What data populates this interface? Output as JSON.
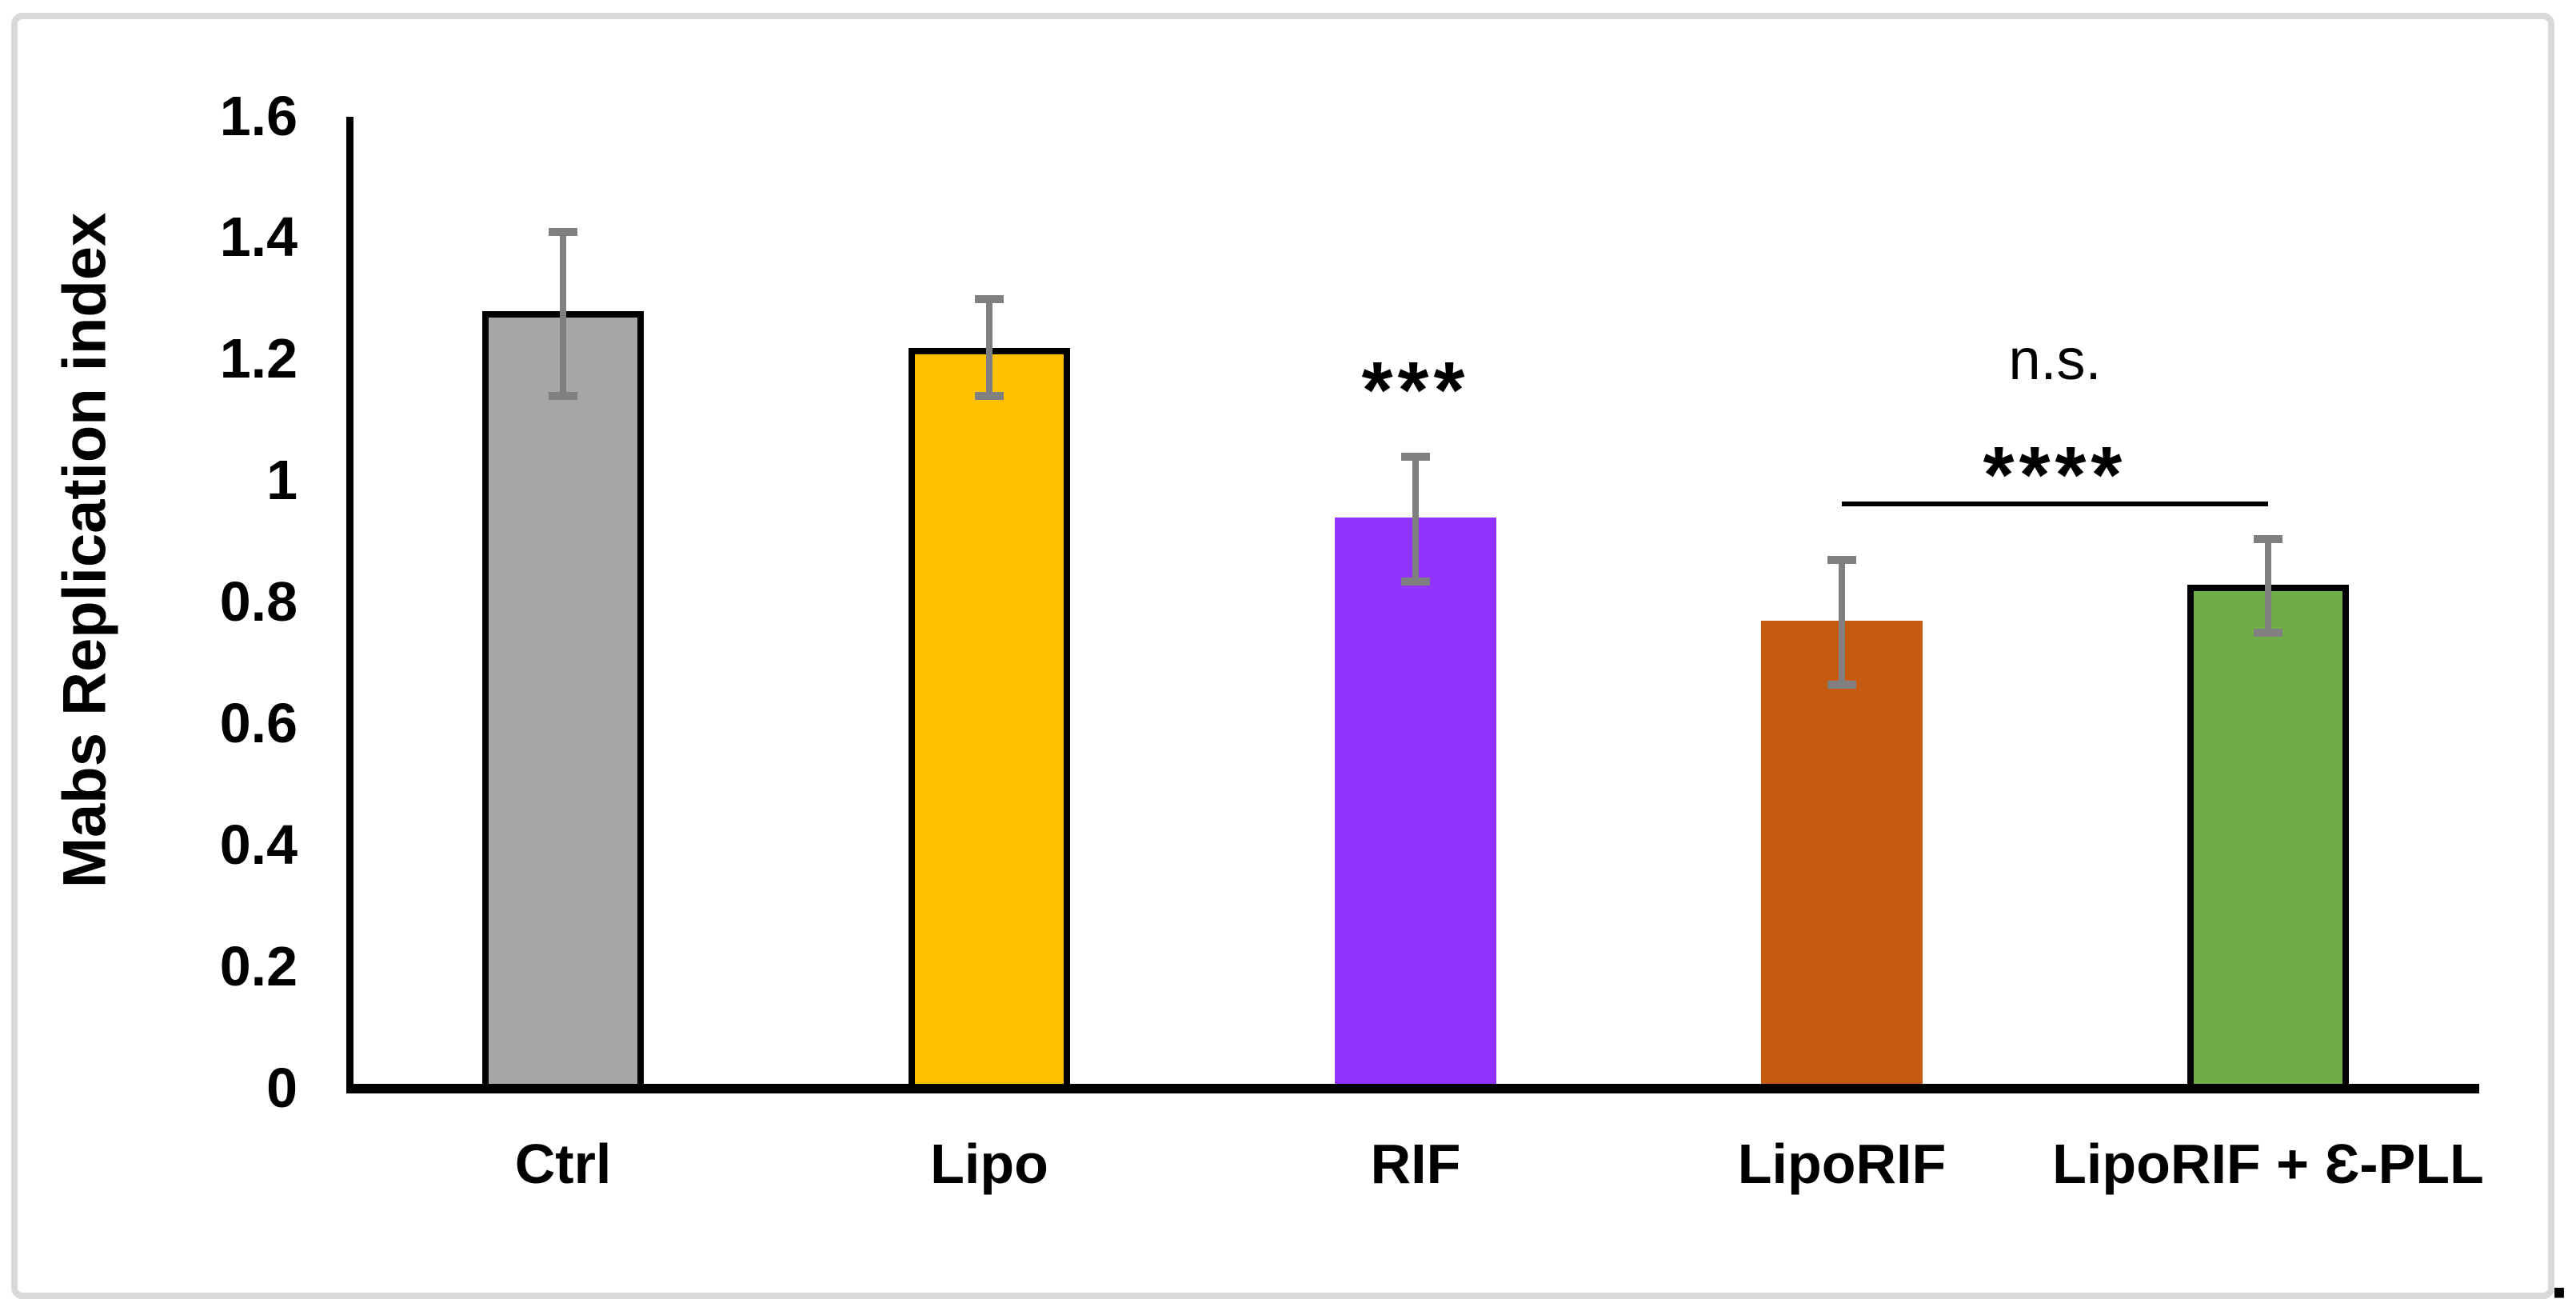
{
  "figure": {
    "caption_mark": "."
  },
  "chart_data": {
    "type": "bar",
    "title": "",
    "xlabel": "",
    "ylabel": "Mabs Replication index",
    "ylim": [
      0,
      1.6
    ],
    "yticks": [
      0,
      0.2,
      0.4,
      0.6,
      0.8,
      1,
      1.2,
      1.4,
      1.6
    ],
    "ytick_labels": [
      "0",
      "0.2",
      "0.4",
      "0.6",
      "0.8",
      "1",
      "1.2",
      "1.4",
      "1.6"
    ],
    "grid": false,
    "legend": false,
    "categories": [
      "Ctrl",
      "Lipo",
      "RIF",
      "LipoRIF",
      "LipoRIF + Ɛ-PLL"
    ],
    "series": [
      {
        "name": "Mabs Replication index",
        "values": [
          1.28,
          1.22,
          0.94,
          0.77,
          0.83
        ],
        "error_high": [
          0.13,
          0.08,
          0.1,
          0.1,
          0.075
        ],
        "error_low": [
          0.14,
          0.08,
          0.105,
          0.105,
          0.08
        ]
      }
    ],
    "bar_colors": [
      "#A6A6A6",
      "#FFC000",
      "#9333FF",
      "#C55A11",
      "#70AD47"
    ],
    "bar_border_flags": [
      true,
      true,
      false,
      false,
      true
    ],
    "bar_border_color": "#000000",
    "error_bar_color": "#808080",
    "axis_color": "#000000",
    "frame_color": "#D9D9D9",
    "annotations": [
      {
        "text": "***",
        "anchor": "category",
        "category_index": 2,
        "y_value": 1.17
      },
      {
        "text": "n.s.",
        "anchor": "between",
        "from_index": 3,
        "to_index": 4,
        "y_value": 1.2
      },
      {
        "text": "****",
        "anchor": "between",
        "from_index": 3,
        "to_index": 4,
        "y_value": 1.03
      }
    ],
    "comparison_line": {
      "from_index": 3,
      "to_index": 4,
      "y_value": 0.962
    }
  }
}
